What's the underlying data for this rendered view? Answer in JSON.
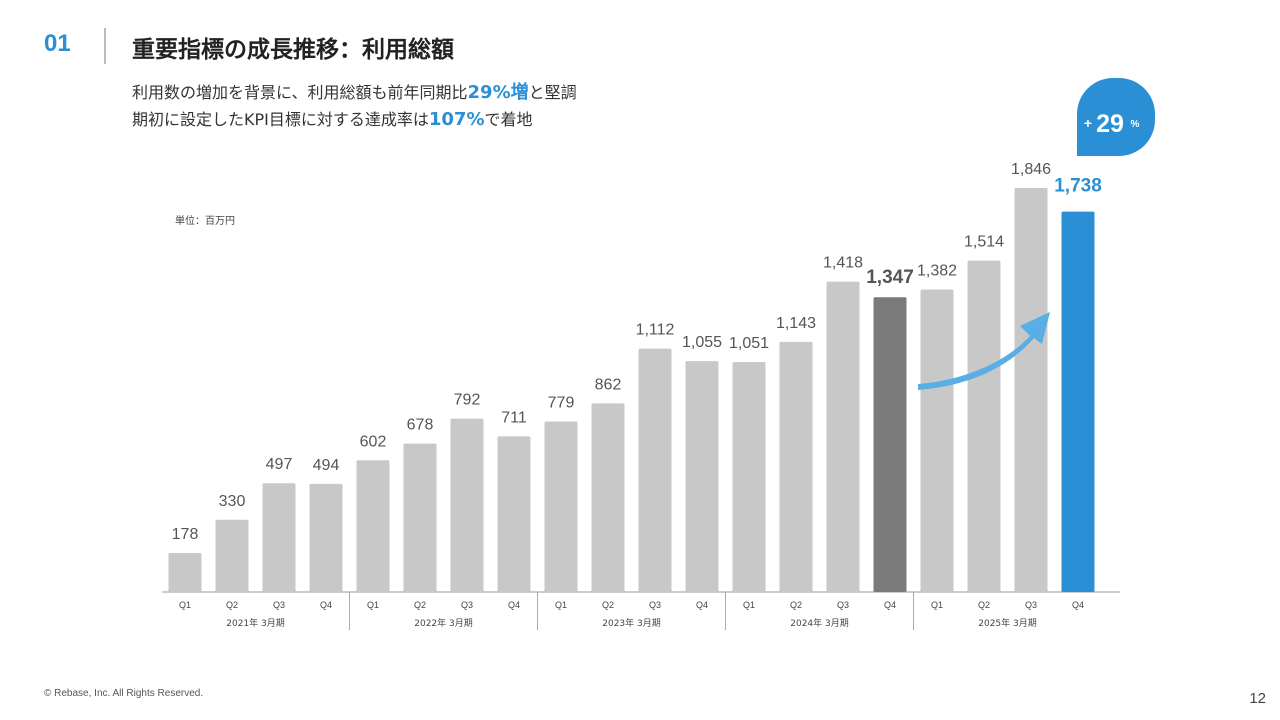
{
  "header": {
    "section_number": "01",
    "title": "重要指標の成長推移：利用総額"
  },
  "summary": {
    "line1_prefix": "利用数の増加を背景に、利用総額も前年同期比",
    "line1_highlight": "29%増",
    "line1_suffix": "と堅調",
    "line2_prefix": "期初に設定したKPI目標に対する達成率は",
    "line2_highlight": "107%",
    "line2_suffix": "で着地"
  },
  "growth_badge": {
    "plus": "+",
    "value": "29",
    "unit": "%"
  },
  "footer": {
    "copyright": "© Rebase, Inc. All Rights Reserved.",
    "page_number": "12"
  },
  "colors": {
    "accent": "#2a8fd4",
    "bar_default": "#c8c8c8",
    "bar_prior_q4": "#7a7a7a",
    "bar_latest": "#2a8fd4",
    "arrow": "#5aaee6"
  },
  "chart_data": {
    "type": "bar",
    "unit_label": "単位：百万円",
    "ylim": [
      0,
      1900
    ],
    "grid": false,
    "categories": [
      "Q1",
      "Q2",
      "Q3",
      "Q4",
      "Q1",
      "Q2",
      "Q3",
      "Q4",
      "Q1",
      "Q2",
      "Q3",
      "Q4",
      "Q1",
      "Q2",
      "Q3",
      "Q4",
      "Q1",
      "Q2",
      "Q3",
      "Q4"
    ],
    "values": [
      178,
      330,
      497,
      494,
      602,
      678,
      792,
      711,
      779,
      862,
      1112,
      1055,
      1051,
      1143,
      1418,
      1347,
      1382,
      1514,
      1846,
      1738
    ],
    "value_labels": [
      "178",
      "330",
      "497",
      "494",
      "602",
      "678",
      "792",
      "711",
      "779",
      "862",
      "1,112",
      "1,055",
      "1,051",
      "1,143",
      "1,418",
      "1,347",
      "1,382",
      "1,514",
      "1,846",
      "1,738"
    ],
    "groups": [
      {
        "label": "2021年 3月期",
        "count": 4
      },
      {
        "label": "2022年 3月期",
        "count": 4
      },
      {
        "label": "2023年 3月期",
        "count": 4
      },
      {
        "label": "2024年 3月期",
        "count": 4
      },
      {
        "label": "2025年 3月期",
        "count": 4
      }
    ],
    "highlight": {
      "prior_index": 15,
      "latest_index": 19
    }
  }
}
